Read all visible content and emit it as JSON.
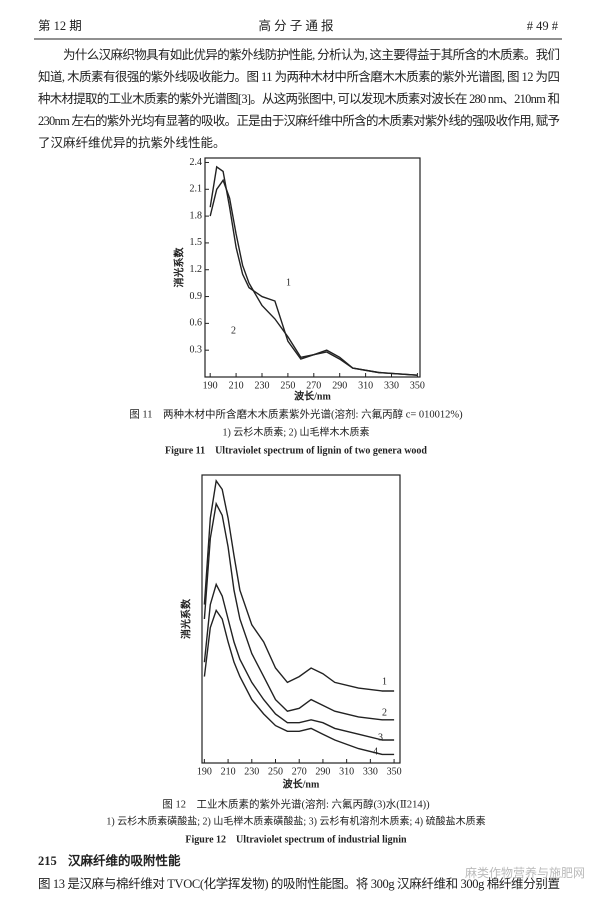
{
  "header": {
    "left": "第 12 期",
    "center": "高 分 子 通 报",
    "right": "# 49 #"
  },
  "paragraph": [
    "为什么汉麻织物具有如此优异的紫外线防护性能, 分析认为, 这主要得益于其所含的木质素。我们",
    "知道, 木质素有很强的紫外线吸收能力。图 11 为两种木材中所含磨木木质素的紫外光谱图, 图 12 为四",
    "种木材提取的工业木质素的紫外光谱图[3]。从这两张图中, 可以发现木质素对波长在 280 nm、210nm 和",
    "230nm 左右的紫外光均有显著的吸收。正是由于汉麻纤维中所含的木质素对紫外线的强吸收作用, 赋予",
    "了汉麻纤维优异的抗紫外线性能。"
  ],
  "chart_data": [
    {
      "type": "line",
      "y_label": "消光系数",
      "x_label": "波长/nm",
      "caption": "图 11　两种木材中所含磨木木质素紫外光谱(溶剂: 六氟丙醇 c= 010012%)",
      "legend_note": "1) 云杉木质素; 2) 山毛榉木木质素",
      "caption_en": "Figure 11　Ultraviolet spectrum of lignin of two genera wood",
      "xlim": [
        186,
        352
      ],
      "ylim": [
        0,
        2.45
      ],
      "xticks": [
        190,
        210,
        230,
        250,
        270,
        290,
        310,
        330,
        350
      ],
      "yticks": [
        0.3,
        0.6,
        0.9,
        1.2,
        1.5,
        1.8,
        2.1,
        2.4
      ],
      "x": [
        190,
        195,
        200,
        205,
        210,
        215,
        220,
        230,
        240,
        250,
        260,
        270,
        280,
        290,
        300,
        320,
        350
      ],
      "series": [
        {
          "name": "1",
          "color": "#222",
          "values": [
            1.9,
            2.35,
            2.3,
            1.9,
            1.45,
            1.15,
            1.0,
            0.9,
            0.85,
            0.4,
            0.2,
            0.25,
            0.28,
            0.2,
            0.1,
            0.05,
            0.02
          ]
        },
        {
          "name": "2",
          "color": "#222",
          "values": [
            1.8,
            2.1,
            2.2,
            2.0,
            1.6,
            1.25,
            1.05,
            0.8,
            0.65,
            0.45,
            0.22,
            0.25,
            0.3,
            0.22,
            0.1,
            0.05,
            0.02
          ]
        }
      ]
    },
    {
      "type": "line",
      "y_label": "消光系数",
      "x_label": "波长/nm",
      "caption": "图 12　工业木质素的紫外光谱(溶剂: 六氟丙醇(3)水(Ⅱ214))",
      "legend_note": "1) 云杉木质素磺酸盐; 2) 山毛榉木质素磺酸盐; 3) 云杉有机溶剂木质素; 4) 硫酸盐木质素",
      "caption_en": "Figure 12　Ultraviolet spectrum of industrial lignin",
      "xlim": [
        188,
        355
      ],
      "ylim": [
        0,
        1
      ],
      "xticks": [
        190,
        210,
        230,
        250,
        270,
        290,
        310,
        330,
        350
      ],
      "x": [
        190,
        195,
        200,
        205,
        210,
        215,
        220,
        230,
        240,
        250,
        260,
        270,
        280,
        290,
        300,
        320,
        340,
        350
      ],
      "series": [
        {
          "name": "1",
          "color": "#222",
          "values": [
            0.55,
            0.85,
            0.98,
            0.95,
            0.85,
            0.72,
            0.6,
            0.48,
            0.42,
            0.33,
            0.28,
            0.3,
            0.33,
            0.31,
            0.28,
            0.26,
            0.25,
            0.25
          ]
        },
        {
          "name": "2",
          "color": "#222",
          "values": [
            0.5,
            0.78,
            0.9,
            0.86,
            0.75,
            0.6,
            0.5,
            0.38,
            0.3,
            0.22,
            0.18,
            0.19,
            0.22,
            0.2,
            0.18,
            0.16,
            0.15,
            0.15
          ]
        },
        {
          "name": "3",
          "color": "#222",
          "values": [
            0.35,
            0.55,
            0.62,
            0.58,
            0.5,
            0.42,
            0.36,
            0.28,
            0.22,
            0.17,
            0.14,
            0.14,
            0.15,
            0.14,
            0.12,
            0.1,
            0.08,
            0.08
          ]
        },
        {
          "name": "4",
          "color": "#222",
          "values": [
            0.3,
            0.47,
            0.53,
            0.5,
            0.42,
            0.35,
            0.3,
            0.22,
            0.17,
            0.13,
            0.11,
            0.11,
            0.12,
            0.1,
            0.08,
            0.05,
            0.03,
            0.03
          ]
        }
      ]
    }
  ],
  "section": {
    "number": "215",
    "title": "汉麻纤维的吸附性能"
  },
  "last_line": "图 13 是汉麻与棉纤维对 TVOC(化学挥发物) 的吸附性能图。将 300g 汉麻纤维和 300g 棉纤维分别置",
  "watermark": "麻类作物营养与施肥网"
}
